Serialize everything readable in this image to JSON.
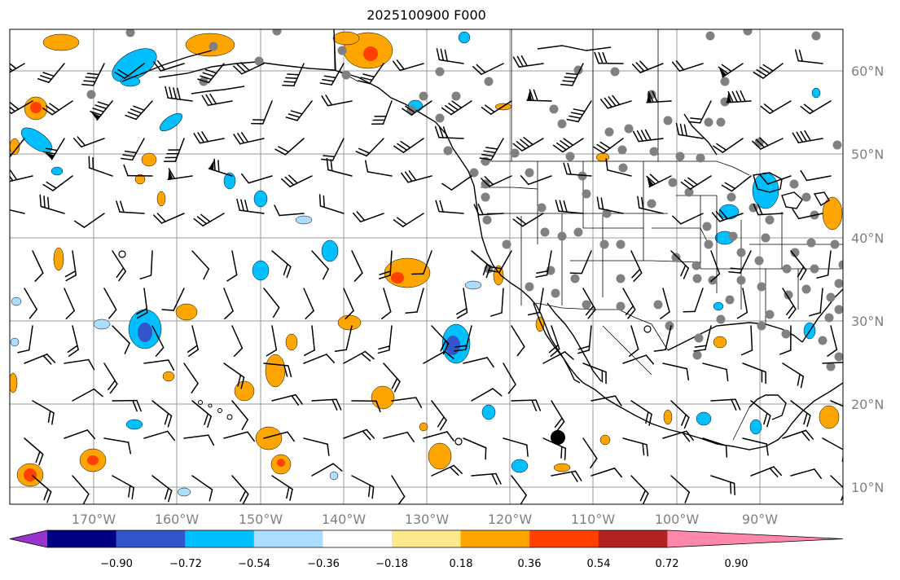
{
  "title": "2025100900 F000",
  "lat_labels": [
    "60°N",
    "50°N",
    "40°N",
    "30°N",
    "20°N",
    "10°N"
  ],
  "lon_labels": [
    "170°W",
    "160°W",
    "150°W",
    "140°W",
    "130°W",
    "120°W",
    "110°W",
    "100°W",
    "90°W"
  ],
  "colorbar": {
    "colors": [
      "#9933cc",
      "#000080",
      "#3355cc",
      "#00bfff",
      "#aaddff",
      "#ffffff",
      "#ffe88c",
      "#ffa500",
      "#ff4000",
      "#b22222",
      "#ff88aa"
    ],
    "tick_labels": [
      "−0.90",
      "−0.72",
      "−0.54",
      "−0.36",
      "−0.18",
      "0.18",
      "0.36",
      "0.54",
      "0.72",
      "0.90"
    ]
  },
  "field_colors": {
    "positive_light": "#ffe88c",
    "positive_mid": "#ffa500",
    "positive_strong": "#ff4000",
    "negative_light": "#aaddff",
    "negative_mid": "#00bfff",
    "negative_strong": "#3355cc"
  },
  "station_color": "#808080"
}
